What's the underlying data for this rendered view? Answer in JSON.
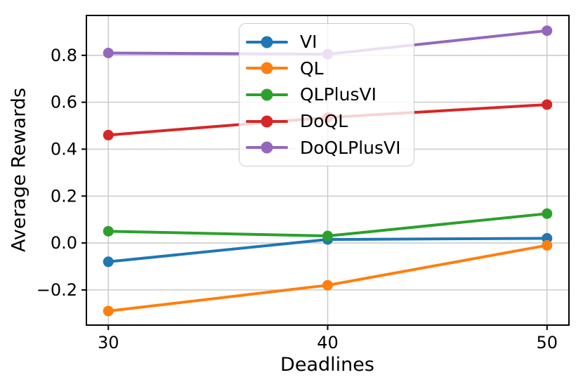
{
  "chart_data": {
    "type": "line",
    "title": "",
    "xlabel": "Deadlines",
    "ylabel": "Average Rewards",
    "x": [
      30,
      40,
      50
    ],
    "series": [
      {
        "name": "VI",
        "color": "#1f77b4",
        "values": [
          -0.08,
          0.015,
          0.02
        ]
      },
      {
        "name": "QL",
        "color": "#ff7f0e",
        "values": [
          -0.29,
          -0.18,
          -0.01
        ]
      },
      {
        "name": "QLPlusVI",
        "color": "#2ca02c",
        "values": [
          0.05,
          0.03,
          0.125
        ]
      },
      {
        "name": "DoQL",
        "color": "#d62728",
        "values": [
          0.46,
          0.535,
          0.59
        ]
      },
      {
        "name": "DoQLPlusVI",
        "color": "#9467bd",
        "values": [
          0.81,
          0.805,
          0.905
        ]
      }
    ],
    "xlim": [
      29,
      51
    ],
    "ylim": [
      -0.35,
      0.97
    ],
    "xticks": [
      30,
      40,
      50
    ],
    "yticks": [
      -0.2,
      0.0,
      0.2,
      0.4,
      0.6,
      0.8
    ],
    "grid": true,
    "legend_position": "upper center",
    "colors": {
      "grid": "#cccccc",
      "spine": "#000000",
      "tick_text": "#000000"
    }
  }
}
